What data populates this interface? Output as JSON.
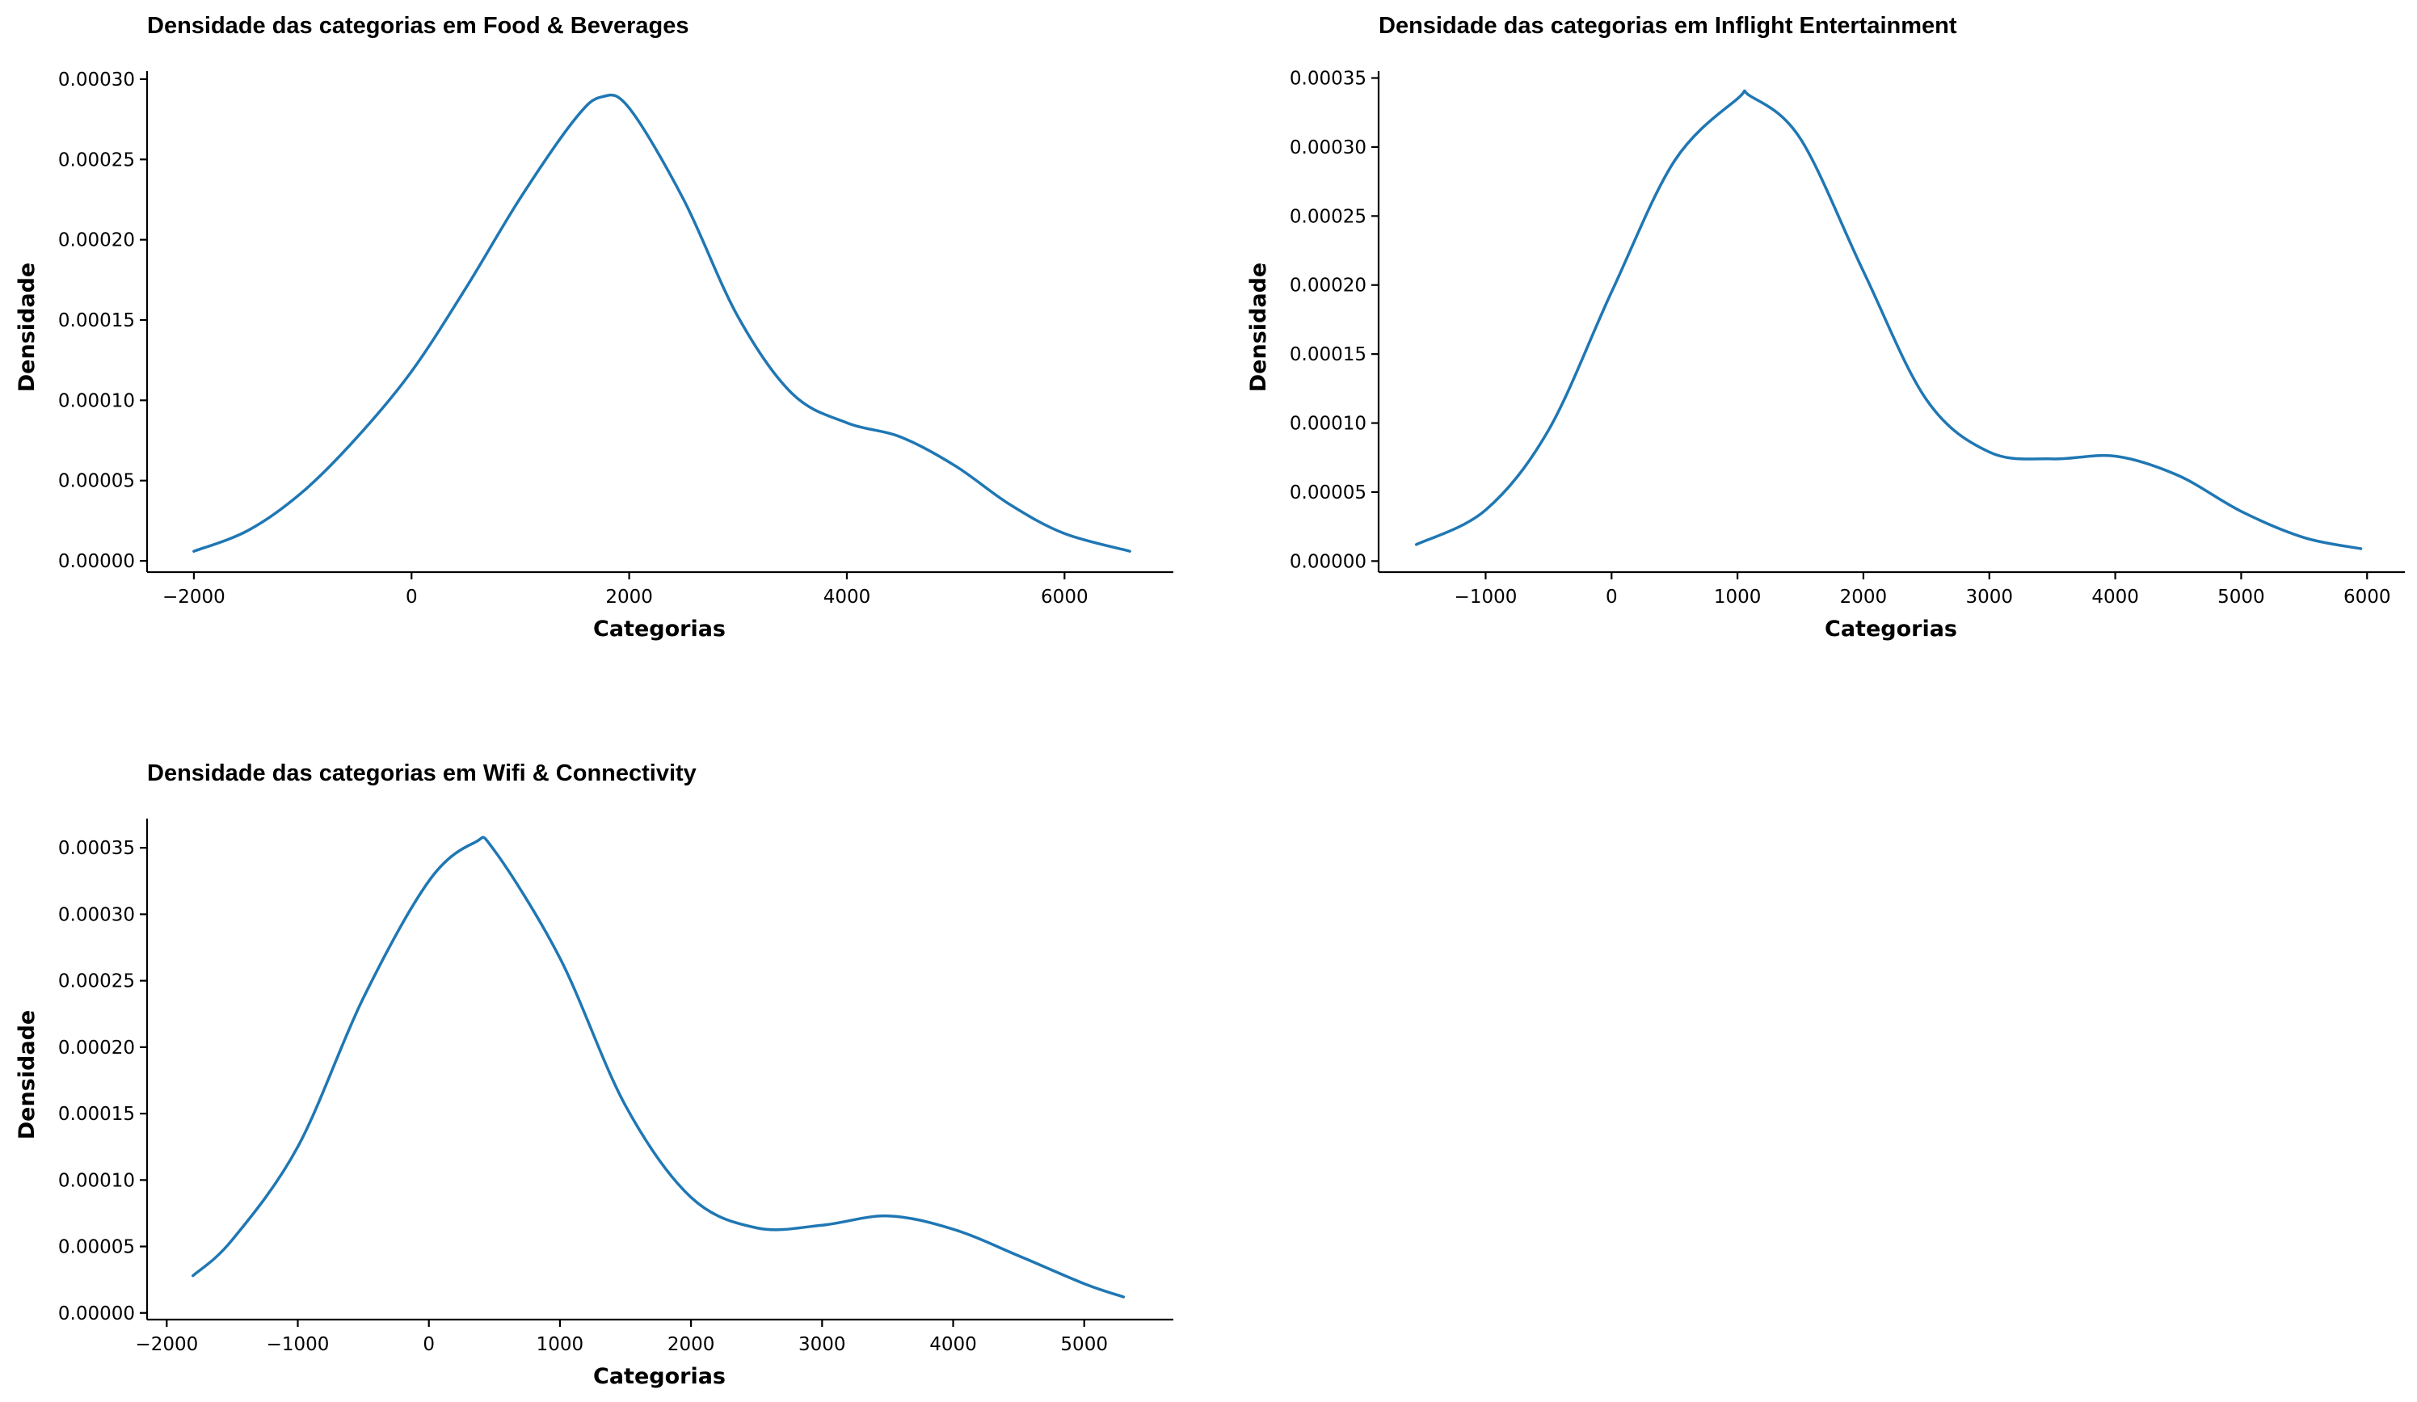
{
  "figure": {
    "background": "#ffffff",
    "line_color": "#1f77b4"
  },
  "chart_data": [
    {
      "type": "line",
      "title": "Densidade das categorias em Food & Beverages",
      "xlabel": "Categorias",
      "ylabel": "Densidade",
      "xlim": [
        -2430,
        7000
      ],
      "ylim": [
        -7e-06,
        0.000305
      ],
      "xticks": [
        -2000,
        0,
        2000,
        4000,
        6000
      ],
      "xtick_labels": [
        "−2000",
        "0",
        "2000",
        "4000",
        "6000"
      ],
      "yticks": [
        0,
        5e-05,
        0.0001,
        0.00015,
        0.0002,
        0.00025,
        0.0003
      ],
      "ytick_labels": [
        "0.00000",
        "0.00005",
        "0.00010",
        "0.00015",
        "0.00020",
        "0.00025",
        "0.00030"
      ],
      "grid": false,
      "series": [
        {
          "x": [
            -2000,
            -1500,
            -1000,
            -500,
            0,
            500,
            1000,
            1500,
            1750,
            2000,
            2500,
            3000,
            3500,
            4000,
            4500,
            5000,
            5500,
            6000,
            6600
          ],
          "y": [
            6e-06,
            1.9e-05,
            4.3e-05,
            7.7e-05,
            0.000118,
            0.00017,
            0.000226,
            0.000275,
            0.000289,
            0.000282,
            0.000225,
            0.000152,
            0.000104,
            8.6e-05,
            7.7e-05,
            5.9e-05,
            3.5e-05,
            1.7e-05,
            6e-06
          ]
        }
      ]
    },
    {
      "type": "line",
      "title": "Densidade das categorias em Inflight Entertainment",
      "xlabel": "Categorias",
      "ylabel": "Densidade",
      "xlim": [
        -1850,
        6300
      ],
      "ylim": [
        -8e-06,
        0.000355
      ],
      "xticks": [
        -1000,
        0,
        1000,
        2000,
        3000,
        4000,
        5000,
        6000
      ],
      "xtick_labels": [
        "−1000",
        "0",
        "1000",
        "2000",
        "3000",
        "4000",
        "5000",
        "6000"
      ],
      "yticks": [
        0,
        5e-05,
        0.0001,
        0.00015,
        0.0002,
        0.00025,
        0.0003,
        0.00035
      ],
      "ytick_labels": [
        "0.00000",
        "0.00005",
        "0.00010",
        "0.00015",
        "0.00020",
        "0.00025",
        "0.00030",
        "0.00035"
      ],
      "grid": false,
      "series": [
        {
          "x": [
            -1550,
            -1000,
            -500,
            0,
            500,
            1000,
            1100,
            1500,
            2000,
            2500,
            3000,
            3500,
            4000,
            4500,
            5000,
            5500,
            5950
          ],
          "y": [
            1.2e-05,
            3.7e-05,
            9.5e-05,
            0.000195,
            0.00029,
            0.000335,
            0.000337,
            0.000306,
            0.00021,
            0.000117,
            7.9e-05,
            7.4e-05,
            7.6e-05,
            6.2e-05,
            3.6e-05,
            1.7e-05,
            9e-06
          ]
        }
      ]
    },
    {
      "type": "line",
      "title": "Densidade das categorias em Wifi & Connectivity",
      "xlabel": "Categorias",
      "ylabel": "Densidade",
      "xlim": [
        -2150,
        5680
      ],
      "ylim": [
        -5e-06,
        0.000372
      ],
      "xticks": [
        -2000,
        -1000,
        0,
        1000,
        2000,
        3000,
        4000,
        5000
      ],
      "xtick_labels": [
        "−2000",
        "−1000",
        "0",
        "1000",
        "2000",
        "3000",
        "4000",
        "5000"
      ],
      "yticks": [
        0,
        5e-05,
        0.0001,
        0.00015,
        0.0002,
        0.00025,
        0.0003,
        0.00035
      ],
      "ytick_labels": [
        "0.00000",
        "0.00005",
        "0.00010",
        "0.00015",
        "0.00020",
        "0.00025",
        "0.00030",
        "0.00035"
      ],
      "grid": false,
      "series": [
        {
          "x": [
            -1800,
            -1500,
            -1000,
            -500,
            0,
            350,
            500,
            1000,
            1500,
            2000,
            2500,
            3000,
            3500,
            4000,
            4500,
            5000,
            5300
          ],
          "y": [
            2.8e-05,
            5.5e-05,
            0.000125,
            0.000237,
            0.000325,
            0.000354,
            0.000348,
            0.000267,
            0.000156,
            8.7e-05,
            6.4e-05,
            6.6e-05,
            7.3e-05,
            6.3e-05,
            4.3e-05,
            2.2e-05,
            1.2e-05
          ]
        }
      ]
    }
  ]
}
